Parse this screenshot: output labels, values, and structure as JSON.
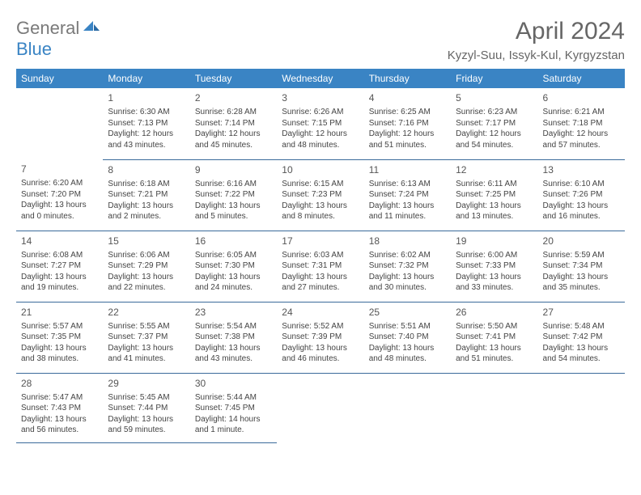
{
  "brand": {
    "gen": "General",
    "blue": "Blue"
  },
  "title": "April 2024",
  "location": "Kyzyl-Suu, Issyk-Kul, Kyrgyzstan",
  "colors": {
    "header_bg": "#3a84c4",
    "rule": "#3a6a9a"
  },
  "weekdays": [
    "Sunday",
    "Monday",
    "Tuesday",
    "Wednesday",
    "Thursday",
    "Friday",
    "Saturday"
  ],
  "days": {
    "1": {
      "sunrise": "6:30 AM",
      "sunset": "7:13 PM",
      "daylight": "12 hours and 43 minutes."
    },
    "2": {
      "sunrise": "6:28 AM",
      "sunset": "7:14 PM",
      "daylight": "12 hours and 45 minutes."
    },
    "3": {
      "sunrise": "6:26 AM",
      "sunset": "7:15 PM",
      "daylight": "12 hours and 48 minutes."
    },
    "4": {
      "sunrise": "6:25 AM",
      "sunset": "7:16 PM",
      "daylight": "12 hours and 51 minutes."
    },
    "5": {
      "sunrise": "6:23 AM",
      "sunset": "7:17 PM",
      "daylight": "12 hours and 54 minutes."
    },
    "6": {
      "sunrise": "6:21 AM",
      "sunset": "7:18 PM",
      "daylight": "12 hours and 57 minutes."
    },
    "7": {
      "sunrise": "6:20 AM",
      "sunset": "7:20 PM",
      "daylight": "13 hours and 0 minutes."
    },
    "8": {
      "sunrise": "6:18 AM",
      "sunset": "7:21 PM",
      "daylight": "13 hours and 2 minutes."
    },
    "9": {
      "sunrise": "6:16 AM",
      "sunset": "7:22 PM",
      "daylight": "13 hours and 5 minutes."
    },
    "10": {
      "sunrise": "6:15 AM",
      "sunset": "7:23 PM",
      "daylight": "13 hours and 8 minutes."
    },
    "11": {
      "sunrise": "6:13 AM",
      "sunset": "7:24 PM",
      "daylight": "13 hours and 11 minutes."
    },
    "12": {
      "sunrise": "6:11 AM",
      "sunset": "7:25 PM",
      "daylight": "13 hours and 13 minutes."
    },
    "13": {
      "sunrise": "6:10 AM",
      "sunset": "7:26 PM",
      "daylight": "13 hours and 16 minutes."
    },
    "14": {
      "sunrise": "6:08 AM",
      "sunset": "7:27 PM",
      "daylight": "13 hours and 19 minutes."
    },
    "15": {
      "sunrise": "6:06 AM",
      "sunset": "7:29 PM",
      "daylight": "13 hours and 22 minutes."
    },
    "16": {
      "sunrise": "6:05 AM",
      "sunset": "7:30 PM",
      "daylight": "13 hours and 24 minutes."
    },
    "17": {
      "sunrise": "6:03 AM",
      "sunset": "7:31 PM",
      "daylight": "13 hours and 27 minutes."
    },
    "18": {
      "sunrise": "6:02 AM",
      "sunset": "7:32 PM",
      "daylight": "13 hours and 30 minutes."
    },
    "19": {
      "sunrise": "6:00 AM",
      "sunset": "7:33 PM",
      "daylight": "13 hours and 33 minutes."
    },
    "20": {
      "sunrise": "5:59 AM",
      "sunset": "7:34 PM",
      "daylight": "13 hours and 35 minutes."
    },
    "21": {
      "sunrise": "5:57 AM",
      "sunset": "7:35 PM",
      "daylight": "13 hours and 38 minutes."
    },
    "22": {
      "sunrise": "5:55 AM",
      "sunset": "7:37 PM",
      "daylight": "13 hours and 41 minutes."
    },
    "23": {
      "sunrise": "5:54 AM",
      "sunset": "7:38 PM",
      "daylight": "13 hours and 43 minutes."
    },
    "24": {
      "sunrise": "5:52 AM",
      "sunset": "7:39 PM",
      "daylight": "13 hours and 46 minutes."
    },
    "25": {
      "sunrise": "5:51 AM",
      "sunset": "7:40 PM",
      "daylight": "13 hours and 48 minutes."
    },
    "26": {
      "sunrise": "5:50 AM",
      "sunset": "7:41 PM",
      "daylight": "13 hours and 51 minutes."
    },
    "27": {
      "sunrise": "5:48 AM",
      "sunset": "7:42 PM",
      "daylight": "13 hours and 54 minutes."
    },
    "28": {
      "sunrise": "5:47 AM",
      "sunset": "7:43 PM",
      "daylight": "13 hours and 56 minutes."
    },
    "29": {
      "sunrise": "5:45 AM",
      "sunset": "7:44 PM",
      "daylight": "13 hours and 59 minutes."
    },
    "30": {
      "sunrise": "5:44 AM",
      "sunset": "7:45 PM",
      "daylight": "14 hours and 1 minute."
    }
  },
  "grid": [
    [
      null,
      1,
      2,
      3,
      4,
      5,
      6
    ],
    [
      7,
      8,
      9,
      10,
      11,
      12,
      13
    ],
    [
      14,
      15,
      16,
      17,
      18,
      19,
      20
    ],
    [
      21,
      22,
      23,
      24,
      25,
      26,
      27
    ],
    [
      28,
      29,
      30,
      null,
      null,
      null,
      null
    ]
  ],
  "labels": {
    "sunrise": "Sunrise: ",
    "sunset": "Sunset: ",
    "daylight": "Daylight: "
  }
}
